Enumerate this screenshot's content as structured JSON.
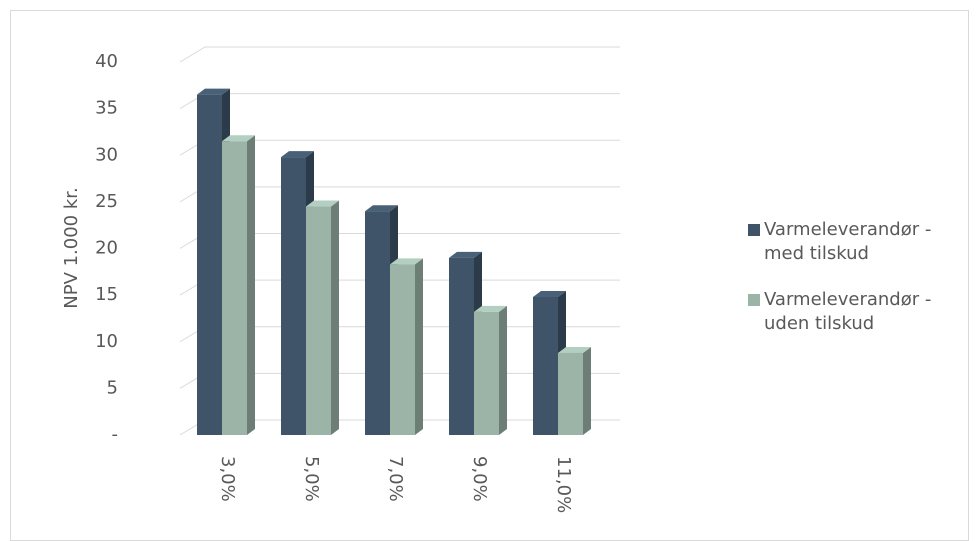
{
  "chart_data": {
    "type": "bar3d",
    "y_label": "NPV 1.000 kr.",
    "categories": [
      "3,0%",
      "5,0%",
      "7,0%",
      "9,0%",
      "11,0%"
    ],
    "series": [
      {
        "name": "Varmeleverandør - med tilskud",
        "color": "#3f5468",
        "values": [
          36.5,
          29.8,
          24.0,
          19.0,
          14.8
        ]
      },
      {
        "name": "Varmeleverandør - uden tilskud",
        "color": "#9cb4a8",
        "values": [
          31.5,
          24.5,
          18.3,
          13.2,
          8.8
        ]
      }
    ],
    "ylim": [
      0,
      40
    ],
    "yticks": [
      {
        "value": 0,
        "label": "-"
      },
      5,
      10,
      15,
      20,
      25,
      30,
      35,
      40
    ],
    "grid": true,
    "legend": "right"
  }
}
